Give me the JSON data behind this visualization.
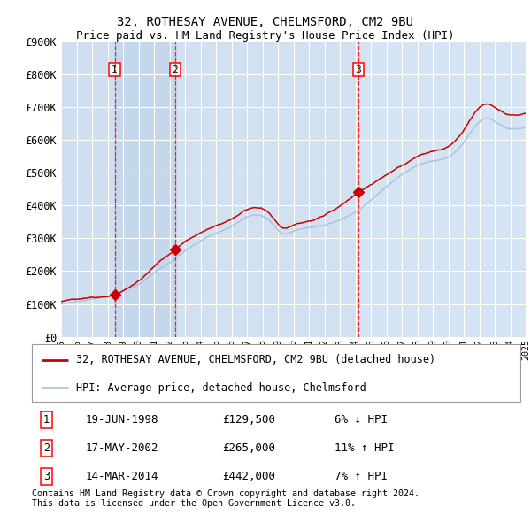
{
  "title": "32, ROTHESAY AVENUE, CHELMSFORD, CM2 9BU",
  "subtitle": "Price paid vs. HM Land Registry's House Price Index (HPI)",
  "ylim": [
    0,
    900000
  ],
  "yticks": [
    0,
    100000,
    200000,
    300000,
    400000,
    500000,
    600000,
    700000,
    800000,
    900000
  ],
  "ytick_labels": [
    "£0",
    "£100K",
    "£200K",
    "£300K",
    "£400K",
    "£500K",
    "£600K",
    "£700K",
    "£800K",
    "£900K"
  ],
  "x_start_year": 1995,
  "x_end_year": 2025,
  "hpi_color": "#aac4e0",
  "price_color": "#cc0000",
  "bg_color": "#dce9f5",
  "grid_color": "#ffffff",
  "sale_dates_num": [
    1998.46,
    2002.37,
    2014.2
  ],
  "sale_prices": [
    129500,
    265000,
    442000
  ],
  "sale_labels": [
    "1",
    "2",
    "3"
  ],
  "legend_label_price": "32, ROTHESAY AVENUE, CHELMSFORD, CM2 9BU (detached house)",
  "legend_label_hpi": "HPI: Average price, detached house, Chelmsford",
  "table_rows": [
    [
      "1",
      "19-JUN-1998",
      "£129,500",
      "6% ↓ HPI"
    ],
    [
      "2",
      "17-MAY-2002",
      "£265,000",
      "11% ↑ HPI"
    ],
    [
      "3",
      "14-MAR-2014",
      "£442,000",
      "7% ↑ HPI"
    ]
  ],
  "footnote": "Contains HM Land Registry data © Crown copyright and database right 2024.\nThis data is licensed under the Open Government Licence v3.0.",
  "title_fontsize": 10,
  "subtitle_fontsize": 9,
  "tick_fontsize": 8.5,
  "legend_fontsize": 8.5,
  "table_fontsize": 9
}
